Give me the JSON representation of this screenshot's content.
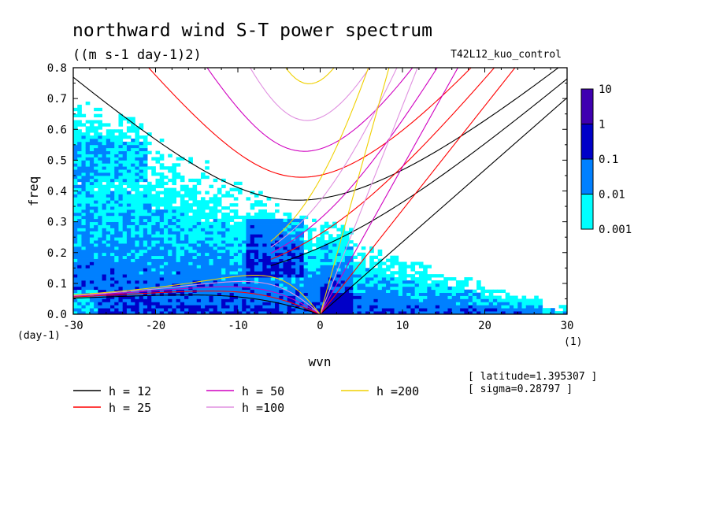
{
  "chart_data": {
    "type": "heatmap",
    "title": "northward wind S-T power spectrum",
    "subtitle": "((m s-1 day-1)2)",
    "run_label": "T42L12_kuo_control",
    "xlabel": "wvn",
    "ylabel": "freq",
    "x_unit": "(1)",
    "y_unit": "(day-1)",
    "xlim": [
      -30,
      30
    ],
    "ylim": [
      0,
      0.8
    ],
    "x_ticks": [
      "-30",
      "-20",
      "-10",
      "0",
      "10",
      "20",
      "30"
    ],
    "y_ticks": [
      "0.0",
      "0.1",
      "0.2",
      "0.3",
      "0.4",
      "0.5",
      "0.6",
      "0.7",
      "0.8"
    ],
    "colorbar": {
      "labels": [
        "0.001",
        "0.01",
        "0.1",
        "1",
        "10"
      ],
      "colors": [
        "#00ffff",
        "#0080ff",
        "#0000c8",
        "#3f00b0"
      ]
    },
    "legend": [
      {
        "label": "h = 12",
        "color": "#000000",
        "h": 12
      },
      {
        "label": "h = 25",
        "color": "#ff0000",
        "h": 25
      },
      {
        "label": "h = 50",
        "color": "#d000c0",
        "h": 50
      },
      {
        "label": "h =100",
        "color": "#e090e0",
        "h": 100
      },
      {
        "label": "h =200",
        "color": "#f0d000",
        "h": 200
      }
    ],
    "info": [
      "[ latitude=1.395307 ]",
      "[ sigma=0.28797 ]"
    ]
  }
}
